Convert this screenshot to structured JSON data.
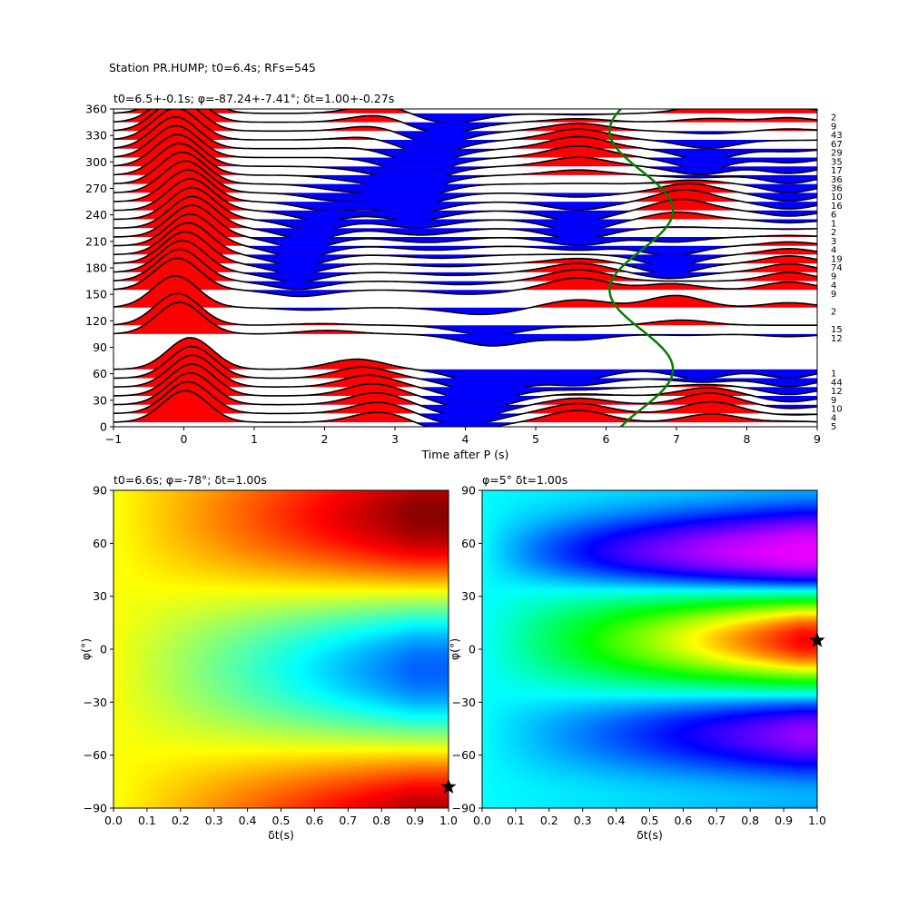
{
  "figure": {
    "suptitle": "Station PR.HUMP; t0=6.4s; RFs=545"
  },
  "chart_data": [
    {
      "type": "line",
      "title": "t0=6.5+-0.1s; φ=-87.24+-7.41°; δt=1.00+-0.27s",
      "xlabel": "Time after P (s)",
      "ylabel": "",
      "xlim": [
        -1,
        9
      ],
      "ylim": [
        0,
        360
      ],
      "xticks": [
        "−1",
        "0",
        "1",
        "2",
        "3",
        "4",
        "5",
        "6",
        "7",
        "8",
        "9"
      ],
      "yticks": [
        "0",
        "30",
        "60",
        "90",
        "120",
        "150",
        "180",
        "210",
        "240",
        "270",
        "300",
        "330",
        "360"
      ],
      "traces": {
        "baz": [
          5,
          15,
          25,
          35,
          45,
          55,
          65,
          105,
          115,
          135,
          155,
          165,
          175,
          185,
          195,
          205,
          215,
          225,
          235,
          245,
          255,
          265,
          275,
          285,
          295,
          305,
          315,
          325,
          335,
          345,
          355
        ],
        "counts": [
          "5",
          "4",
          "10",
          "9",
          "12",
          "44",
          "1",
          "12",
          "15",
          "2",
          "9",
          "4",
          "9",
          "74",
          "19",
          "4",
          "3",
          "2",
          "1",
          "6",
          "16",
          "10",
          "36",
          "36",
          "17",
          "35",
          "29",
          "67",
          "43",
          "9",
          "2"
        ],
        "count_baz": [
          0,
          10,
          20,
          30,
          40,
          50,
          60,
          100,
          110,
          130,
          150,
          160,
          170,
          180,
          190,
          200,
          210,
          220,
          230,
          240,
          250,
          260,
          270,
          280,
          290,
          300,
          310,
          320,
          330,
          340,
          350
        ],
        "positive_fill": "#ff0000",
        "negative_fill": "#0000ff"
      },
      "predicted_curve": {
        "color": "#008000",
        "description_center_s": 6.5,
        "amplitude_s": 1.0
      }
    },
    {
      "type": "heatmap",
      "title": "t0=6.6s; φ=-78°; δt=1.00s",
      "xlabel": "δt(s)",
      "ylabel": "φ(°)",
      "xlim": [
        0.0,
        1.0
      ],
      "ylim": [
        -90,
        90
      ],
      "xticks": [
        "0.0",
        "0.1",
        "0.2",
        "0.3",
        "0.4",
        "0.5",
        "0.6",
        "0.7",
        "0.8",
        "0.9",
        "1.0"
      ],
      "yticks": [
        "−90",
        "−60",
        "−30",
        "0",
        "30",
        "60",
        "90"
      ],
      "colormap": "jet",
      "best": {
        "dt": 1.0,
        "phi": -78
      }
    },
    {
      "type": "heatmap",
      "title": "φ=5° δt=1.00s",
      "xlabel": "δt(s)",
      "ylabel": "φ(°)",
      "xlim": [
        0.0,
        1.0
      ],
      "ylim": [
        -90,
        90
      ],
      "xticks": [
        "0.0",
        "0.1",
        "0.2",
        "0.3",
        "0.4",
        "0.5",
        "0.6",
        "0.7",
        "0.8",
        "0.9",
        "1.0"
      ],
      "yticks": [
        "−90",
        "−60",
        "−30",
        "0",
        "30",
        "60",
        "90"
      ],
      "colormap": "hsv",
      "best": {
        "dt": 1.0,
        "phi": 5
      }
    }
  ]
}
